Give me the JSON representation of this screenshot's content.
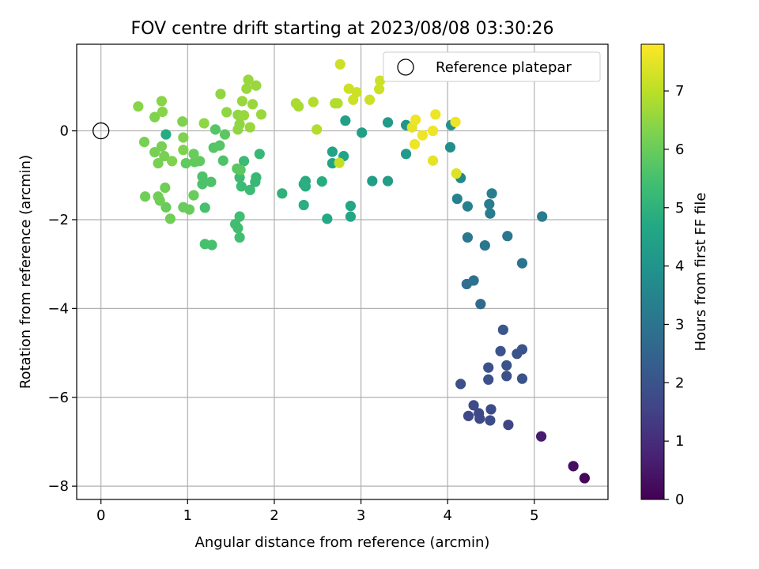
{
  "chart_data": {
    "type": "scatter",
    "title": "FOV centre drift starting at 2023/08/08 03:30:26",
    "xlabel": "Angular distance from reference (arcmin)",
    "ylabel": "Rotation from reference (arcmin)",
    "xlim": [
      -0.28,
      5.85
    ],
    "ylim": [
      -8.3,
      1.95
    ],
    "xticks": [
      0,
      1,
      2,
      3,
      4,
      5
    ],
    "yticks": [
      -8,
      -6,
      -4,
      -2,
      0
    ],
    "grid": true,
    "legend": {
      "placement": "top-right",
      "entries": [
        "Reference platepar"
      ]
    },
    "reference_point": {
      "x": 0,
      "y": 0
    },
    "colorbar": {
      "label": "Hours from first FF file",
      "range": [
        0,
        7.8
      ],
      "ticks": [
        0,
        1,
        2,
        3,
        4,
        5,
        6,
        7
      ],
      "colormap": "viridis"
    },
    "points": [
      {
        "x": 5.58,
        "y": -7.82,
        "h": 0.1
      },
      {
        "x": 5.45,
        "y": -7.55,
        "h": 0.3
      },
      {
        "x": 5.08,
        "y": -6.88,
        "h": 0.6
      },
      {
        "x": 4.7,
        "y": -6.62,
        "h": 1.6
      },
      {
        "x": 4.24,
        "y": -6.42,
        "h": 1.7
      },
      {
        "x": 4.37,
        "y": -6.48,
        "h": 1.7
      },
      {
        "x": 4.49,
        "y": -6.52,
        "h": 1.8
      },
      {
        "x": 4.36,
        "y": -6.36,
        "h": 1.7
      },
      {
        "x": 4.5,
        "y": -6.27,
        "h": 1.8
      },
      {
        "x": 4.3,
        "y": -6.18,
        "h": 1.8
      },
      {
        "x": 4.15,
        "y": -5.7,
        "h": 1.9
      },
      {
        "x": 4.47,
        "y": -5.6,
        "h": 1.9
      },
      {
        "x": 4.68,
        "y": -5.52,
        "h": 1.9
      },
      {
        "x": 4.86,
        "y": -5.58,
        "h": 2.0
      },
      {
        "x": 4.47,
        "y": -5.33,
        "h": 1.9
      },
      {
        "x": 4.68,
        "y": -5.28,
        "h": 2.0
      },
      {
        "x": 4.8,
        "y": -5.02,
        "h": 2.0
      },
      {
        "x": 4.86,
        "y": -4.92,
        "h": 2.0
      },
      {
        "x": 4.61,
        "y": -4.96,
        "h": 2.0
      },
      {
        "x": 4.64,
        "y": -4.48,
        "h": 2.1
      },
      {
        "x": 4.38,
        "y": -3.9,
        "h": 2.7
      },
      {
        "x": 4.22,
        "y": -3.45,
        "h": 2.8
      },
      {
        "x": 4.3,
        "y": -3.37,
        "h": 2.9
      },
      {
        "x": 4.86,
        "y": -2.98,
        "h": 3.0
      },
      {
        "x": 4.43,
        "y": -2.58,
        "h": 3.1
      },
      {
        "x": 4.23,
        "y": -2.4,
        "h": 3.1
      },
      {
        "x": 4.69,
        "y": -2.37,
        "h": 3.1
      },
      {
        "x": 5.09,
        "y": -1.93,
        "h": 3.2
      },
      {
        "x": 4.49,
        "y": -1.86,
        "h": 3.2
      },
      {
        "x": 4.48,
        "y": -1.65,
        "h": 3.3
      },
      {
        "x": 4.23,
        "y": -1.7,
        "h": 3.4
      },
      {
        "x": 4.51,
        "y": -1.41,
        "h": 3.3
      },
      {
        "x": 4.11,
        "y": -1.53,
        "h": 3.4
      },
      {
        "x": 4.15,
        "y": -1.06,
        "h": 3.6
      },
      {
        "x": 4.03,
        "y": -0.37,
        "h": 3.8
      },
      {
        "x": 4.04,
        "y": 0.13,
        "h": 3.9
      },
      {
        "x": 3.52,
        "y": 0.13,
        "h": 4.1
      },
      {
        "x": 3.52,
        "y": -0.52,
        "h": 4.2
      },
      {
        "x": 3.31,
        "y": 0.19,
        "h": 4.2
      },
      {
        "x": 3.31,
        "y": -1.13,
        "h": 4.3
      },
      {
        "x": 3.13,
        "y": -1.13,
        "h": 4.3
      },
      {
        "x": 3.01,
        "y": -0.04,
        "h": 4.4
      },
      {
        "x": 2.82,
        "y": 0.23,
        "h": 4.4
      },
      {
        "x": 2.8,
        "y": -0.57,
        "h": 4.5
      },
      {
        "x": 2.67,
        "y": -0.47,
        "h": 4.5
      },
      {
        "x": 2.67,
        "y": -0.73,
        "h": 4.5
      },
      {
        "x": 2.88,
        "y": -1.69,
        "h": 4.6
      },
      {
        "x": 2.88,
        "y": -1.93,
        "h": 4.6
      },
      {
        "x": 2.61,
        "y": -1.98,
        "h": 4.7
      },
      {
        "x": 2.55,
        "y": -1.14,
        "h": 4.8
      },
      {
        "x": 2.36,
        "y": -1.13,
        "h": 4.8
      },
      {
        "x": 2.36,
        "y": -1.25,
        "h": 4.8
      },
      {
        "x": 2.34,
        "y": -1.2,
        "h": 4.9
      },
      {
        "x": 2.34,
        "y": -1.67,
        "h": 4.9
      },
      {
        "x": 2.09,
        "y": -1.41,
        "h": 5.0
      },
      {
        "x": 1.83,
        "y": -0.52,
        "h": 5.2
      },
      {
        "x": 1.79,
        "y": -1.05,
        "h": 5.2
      },
      {
        "x": 1.78,
        "y": -1.15,
        "h": 5.2
      },
      {
        "x": 1.72,
        "y": -1.33,
        "h": 5.3
      },
      {
        "x": 1.65,
        "y": -0.68,
        "h": 5.3
      },
      {
        "x": 1.62,
        "y": -1.25,
        "h": 5.3
      },
      {
        "x": 1.6,
        "y": -1.05,
        "h": 5.3
      },
      {
        "x": 1.6,
        "y": -1.93,
        "h": 5.4
      },
      {
        "x": 1.55,
        "y": -2.1,
        "h": 5.4
      },
      {
        "x": 1.58,
        "y": -2.19,
        "h": 5.4
      },
      {
        "x": 1.6,
        "y": -2.4,
        "h": 5.4
      },
      {
        "x": 1.28,
        "y": -2.57,
        "h": 5.5
      },
      {
        "x": 1.2,
        "y": -2.55,
        "h": 5.5
      },
      {
        "x": 1.2,
        "y": -1.73,
        "h": 5.5
      },
      {
        "x": 1.27,
        "y": -1.15,
        "h": 5.6
      },
      {
        "x": 1.17,
        "y": -1.2,
        "h": 5.6
      },
      {
        "x": 1.17,
        "y": -1.03,
        "h": 5.6
      },
      {
        "x": 1.41,
        "y": -0.67,
        "h": 5.6
      },
      {
        "x": 1.37,
        "y": -0.33,
        "h": 5.7
      },
      {
        "x": 1.3,
        "y": -0.38,
        "h": 5.7
      },
      {
        "x": 1.32,
        "y": 0.03,
        "h": 5.7
      },
      {
        "x": 1.43,
        "y": -0.08,
        "h": 5.8
      },
      {
        "x": 1.61,
        "y": -0.88,
        "h": 5.8
      },
      {
        "x": 1.57,
        "y": -0.85,
        "h": 5.8
      },
      {
        "x": 1.14,
        "y": -0.68,
        "h": 5.9
      },
      {
        "x": 1.08,
        "y": -0.7,
        "h": 5.9
      },
      {
        "x": 0.98,
        "y": -0.73,
        "h": 5.9
      },
      {
        "x": 1.07,
        "y": -0.52,
        "h": 6.0
      },
      {
        "x": 1.07,
        "y": -1.45,
        "h": 6.0
      },
      {
        "x": 1.02,
        "y": -1.77,
        "h": 6.0
      },
      {
        "x": 0.95,
        "y": -1.72,
        "h": 6.0
      },
      {
        "x": 0.75,
        "y": -1.72,
        "h": 6.0
      },
      {
        "x": 0.8,
        "y": -1.98,
        "h": 6.1
      },
      {
        "x": 0.74,
        "y": -1.28,
        "h": 6.1
      },
      {
        "x": 0.66,
        "y": -1.48,
        "h": 6.1
      },
      {
        "x": 0.68,
        "y": -1.57,
        "h": 6.1
      },
      {
        "x": 0.51,
        "y": -1.48,
        "h": 6.1
      },
      {
        "x": 0.66,
        "y": -0.73,
        "h": 6.2
      },
      {
        "x": 0.62,
        "y": -0.48,
        "h": 6.2
      },
      {
        "x": 0.73,
        "y": -0.57,
        "h": 6.2
      },
      {
        "x": 0.7,
        "y": -0.35,
        "h": 6.2
      },
      {
        "x": 0.5,
        "y": -0.25,
        "h": 6.2
      },
      {
        "x": 0.82,
        "y": -0.68,
        "h": 6.3
      },
      {
        "x": 0.95,
        "y": -0.43,
        "h": 6.3
      },
      {
        "x": 0.95,
        "y": -0.15,
        "h": 6.3
      },
      {
        "x": 0.94,
        "y": 0.21,
        "h": 6.3
      },
      {
        "x": 0.62,
        "y": 0.31,
        "h": 6.3
      },
      {
        "x": 0.43,
        "y": 0.55,
        "h": 6.4
      },
      {
        "x": 0.7,
        "y": 0.67,
        "h": 6.4
      },
      {
        "x": 0.71,
        "y": 0.43,
        "h": 6.4
      },
      {
        "x": 0.75,
        "y": -0.08,
        "h": 4.8
      },
      {
        "x": 1.19,
        "y": 0.17,
        "h": 6.5
      },
      {
        "x": 1.38,
        "y": 0.83,
        "h": 6.5
      },
      {
        "x": 1.45,
        "y": 0.42,
        "h": 6.5
      },
      {
        "x": 1.58,
        "y": 0.36,
        "h": 6.5
      },
      {
        "x": 1.6,
        "y": 0.15,
        "h": 6.5
      },
      {
        "x": 1.58,
        "y": 0.03,
        "h": 6.5
      },
      {
        "x": 1.63,
        "y": 0.67,
        "h": 6.6
      },
      {
        "x": 1.65,
        "y": 0.35,
        "h": 6.6
      },
      {
        "x": 1.72,
        "y": 0.08,
        "h": 6.6
      },
      {
        "x": 1.75,
        "y": 0.6,
        "h": 6.6
      },
      {
        "x": 1.68,
        "y": 0.95,
        "h": 6.6
      },
      {
        "x": 1.7,
        "y": 1.15,
        "h": 6.6
      },
      {
        "x": 1.79,
        "y": 1.02,
        "h": 6.6
      },
      {
        "x": 1.85,
        "y": 0.37,
        "h": 6.6
      },
      {
        "x": 2.25,
        "y": 0.62,
        "h": 6.8
      },
      {
        "x": 2.28,
        "y": 0.55,
        "h": 6.8
      },
      {
        "x": 2.45,
        "y": 0.65,
        "h": 6.9
      },
      {
        "x": 2.49,
        "y": 0.03,
        "h": 6.9
      },
      {
        "x": 2.7,
        "y": 0.62,
        "h": 6.9
      },
      {
        "x": 2.73,
        "y": 0.62,
        "h": 6.9
      },
      {
        "x": 2.75,
        "y": -0.72,
        "h": 7.1
      },
      {
        "x": 2.76,
        "y": 1.5,
        "h": 7.2
      },
      {
        "x": 2.86,
        "y": 0.95,
        "h": 7.2
      },
      {
        "x": 2.91,
        "y": 0.7,
        "h": 7.2
      },
      {
        "x": 2.95,
        "y": 0.87,
        "h": 7.2
      },
      {
        "x": 3.1,
        "y": 0.7,
        "h": 7.2
      },
      {
        "x": 3.21,
        "y": 0.94,
        "h": 7.2
      },
      {
        "x": 3.22,
        "y": 1.13,
        "h": 7.2
      },
      {
        "x": 3.59,
        "y": 0.08,
        "h": 7.5
      },
      {
        "x": 3.63,
        "y": 0.25,
        "h": 7.6
      },
      {
        "x": 3.62,
        "y": -0.3,
        "h": 7.6
      },
      {
        "x": 3.71,
        "y": -0.1,
        "h": 7.6
      },
      {
        "x": 3.83,
        "y": 0.0,
        "h": 7.6
      },
      {
        "x": 3.83,
        "y": -0.67,
        "h": 7.5
      },
      {
        "x": 3.86,
        "y": 0.37,
        "h": 7.6
      },
      {
        "x": 4.09,
        "y": 0.2,
        "h": 7.6
      },
      {
        "x": 4.1,
        "y": -0.96,
        "h": 7.4
      }
    ]
  }
}
